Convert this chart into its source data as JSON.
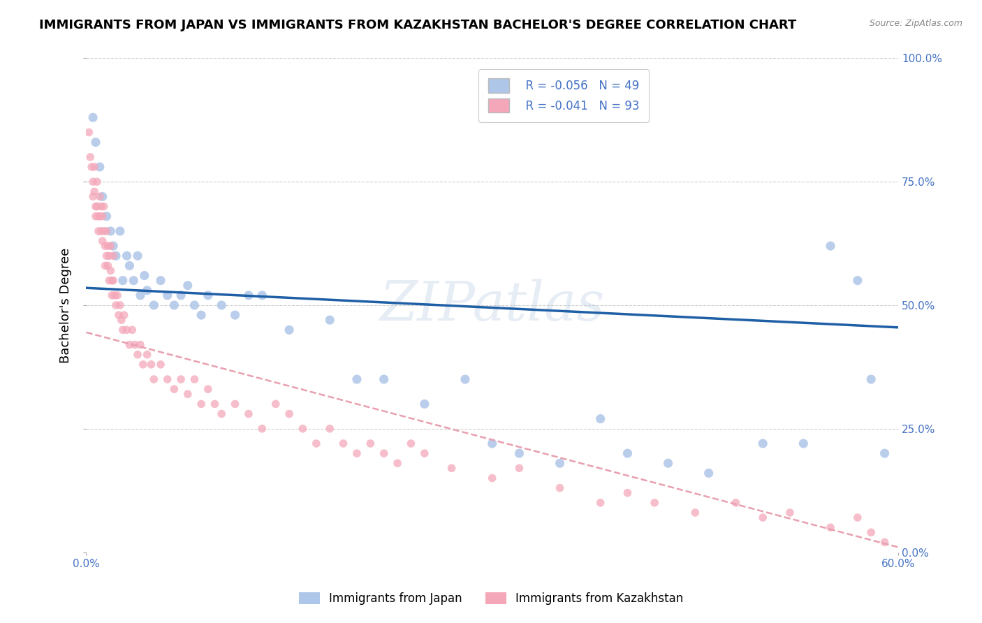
{
  "title": "IMMIGRANTS FROM JAPAN VS IMMIGRANTS FROM KAZAKHSTAN BACHELOR'S DEGREE CORRELATION CHART",
  "source_text": "Source: ZipAtlas.com",
  "ylabel": "Bachelor's Degree",
  "xlim": [
    0.0,
    0.6
  ],
  "ylim": [
    0.0,
    1.0
  ],
  "xtick_labels": [
    "0.0%",
    "60.0%"
  ],
  "xtick_positions": [
    0.0,
    0.6
  ],
  "ytick_labels": [
    "0.0%",
    "25.0%",
    "50.0%",
    "75.0%",
    "100.0%"
  ],
  "ytick_positions": [
    0.0,
    0.25,
    0.5,
    0.75,
    1.0
  ],
  "japan_R": -0.056,
  "japan_N": 49,
  "kazakhstan_R": -0.041,
  "kazakhstan_N": 93,
  "japan_color": "#aec6e8",
  "kazakhstan_color": "#f4a7b9",
  "japan_line_color": "#1f5fa6",
  "kazakhstan_line_color": "#e8a0b0",
  "legend_japan_label": "Immigrants from Japan",
  "legend_kazakhstan_label": "Immigrants from Kazakhstan",
  "watermark": "ZIPatlas",
  "background_color": "#ffffff",
  "grid_color": "#d0d0d0",
  "axis_color": "#4472c4",
  "japan_line_x0": 0.0,
  "japan_line_y0": 0.535,
  "japan_line_x1": 0.6,
  "japan_line_y1": 0.455,
  "kaz_line_x0": 0.0,
  "kaz_line_y0": 0.445,
  "kaz_line_x1": 0.6,
  "kaz_line_y1": 0.01,
  "japan_x": [
    0.005,
    0.007,
    0.01,
    0.012,
    0.015,
    0.018,
    0.02,
    0.022,
    0.025,
    0.027,
    0.03,
    0.032,
    0.035,
    0.038,
    0.04,
    0.043,
    0.045,
    0.05,
    0.055,
    0.06,
    0.065,
    0.07,
    0.075,
    0.08,
    0.085,
    0.09,
    0.1,
    0.11,
    0.12,
    0.13,
    0.15,
    0.18,
    0.2,
    0.22,
    0.25,
    0.28,
    0.3,
    0.32,
    0.35,
    0.38,
    0.4,
    0.43,
    0.46,
    0.5,
    0.53,
    0.55,
    0.57,
    0.58,
    0.59
  ],
  "japan_y": [
    0.88,
    0.83,
    0.78,
    0.72,
    0.68,
    0.65,
    0.62,
    0.6,
    0.65,
    0.55,
    0.6,
    0.58,
    0.55,
    0.6,
    0.52,
    0.56,
    0.53,
    0.5,
    0.55,
    0.52,
    0.5,
    0.52,
    0.54,
    0.5,
    0.48,
    0.52,
    0.5,
    0.48,
    0.52,
    0.52,
    0.45,
    0.47,
    0.35,
    0.35,
    0.3,
    0.35,
    0.22,
    0.2,
    0.18,
    0.27,
    0.2,
    0.18,
    0.16,
    0.22,
    0.22,
    0.62,
    0.55,
    0.35,
    0.2
  ],
  "kaz_x": [
    0.002,
    0.003,
    0.004,
    0.005,
    0.005,
    0.006,
    0.006,
    0.007,
    0.007,
    0.008,
    0.008,
    0.009,
    0.009,
    0.01,
    0.01,
    0.011,
    0.011,
    0.012,
    0.012,
    0.013,
    0.013,
    0.014,
    0.014,
    0.015,
    0.015,
    0.016,
    0.016,
    0.017,
    0.017,
    0.018,
    0.018,
    0.019,
    0.019,
    0.02,
    0.02,
    0.021,
    0.022,
    0.023,
    0.024,
    0.025,
    0.026,
    0.027,
    0.028,
    0.03,
    0.032,
    0.034,
    0.036,
    0.038,
    0.04,
    0.042,
    0.045,
    0.048,
    0.05,
    0.055,
    0.06,
    0.065,
    0.07,
    0.075,
    0.08,
    0.085,
    0.09,
    0.095,
    0.1,
    0.11,
    0.12,
    0.13,
    0.14,
    0.15,
    0.16,
    0.17,
    0.18,
    0.19,
    0.2,
    0.21,
    0.22,
    0.23,
    0.24,
    0.25,
    0.27,
    0.3,
    0.32,
    0.35,
    0.38,
    0.4,
    0.42,
    0.45,
    0.48,
    0.5,
    0.52,
    0.55,
    0.57,
    0.58,
    0.59
  ],
  "kaz_y": [
    0.85,
    0.8,
    0.78,
    0.75,
    0.72,
    0.78,
    0.73,
    0.7,
    0.68,
    0.75,
    0.7,
    0.68,
    0.65,
    0.72,
    0.68,
    0.7,
    0.65,
    0.68,
    0.63,
    0.7,
    0.65,
    0.62,
    0.58,
    0.65,
    0.6,
    0.62,
    0.58,
    0.6,
    0.55,
    0.62,
    0.57,
    0.55,
    0.52,
    0.6,
    0.55,
    0.52,
    0.5,
    0.52,
    0.48,
    0.5,
    0.47,
    0.45,
    0.48,
    0.45,
    0.42,
    0.45,
    0.42,
    0.4,
    0.42,
    0.38,
    0.4,
    0.38,
    0.35,
    0.38,
    0.35,
    0.33,
    0.35,
    0.32,
    0.35,
    0.3,
    0.33,
    0.3,
    0.28,
    0.3,
    0.28,
    0.25,
    0.3,
    0.28,
    0.25,
    0.22,
    0.25,
    0.22,
    0.2,
    0.22,
    0.2,
    0.18,
    0.22,
    0.2,
    0.17,
    0.15,
    0.17,
    0.13,
    0.1,
    0.12,
    0.1,
    0.08,
    0.1,
    0.07,
    0.08,
    0.05,
    0.07,
    0.04,
    0.02
  ]
}
